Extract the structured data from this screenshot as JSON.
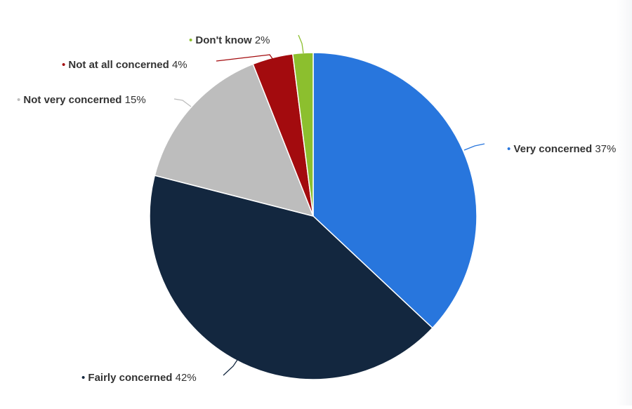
{
  "chart_data": {
    "type": "pie",
    "title": "",
    "start_angle_deg": 0,
    "direction": "clockwise",
    "slices": [
      {
        "label": "Very concerned",
        "value": 37,
        "value_label": "37%",
        "color": "#2876dd"
      },
      {
        "label": "Fairly concerned",
        "value": 42,
        "value_label": "42%",
        "color": "#13273f"
      },
      {
        "label": "Not very concerned",
        "value": 15,
        "value_label": "15%",
        "color": "#bdbdbd"
      },
      {
        "label": "Not at all concerned",
        "value": 4,
        "value_label": "4%",
        "color": "#a30b0e"
      },
      {
        "label": "Don't know",
        "value": 2,
        "value_label": "2%",
        "color": "#8cbf2e"
      }
    ]
  }
}
